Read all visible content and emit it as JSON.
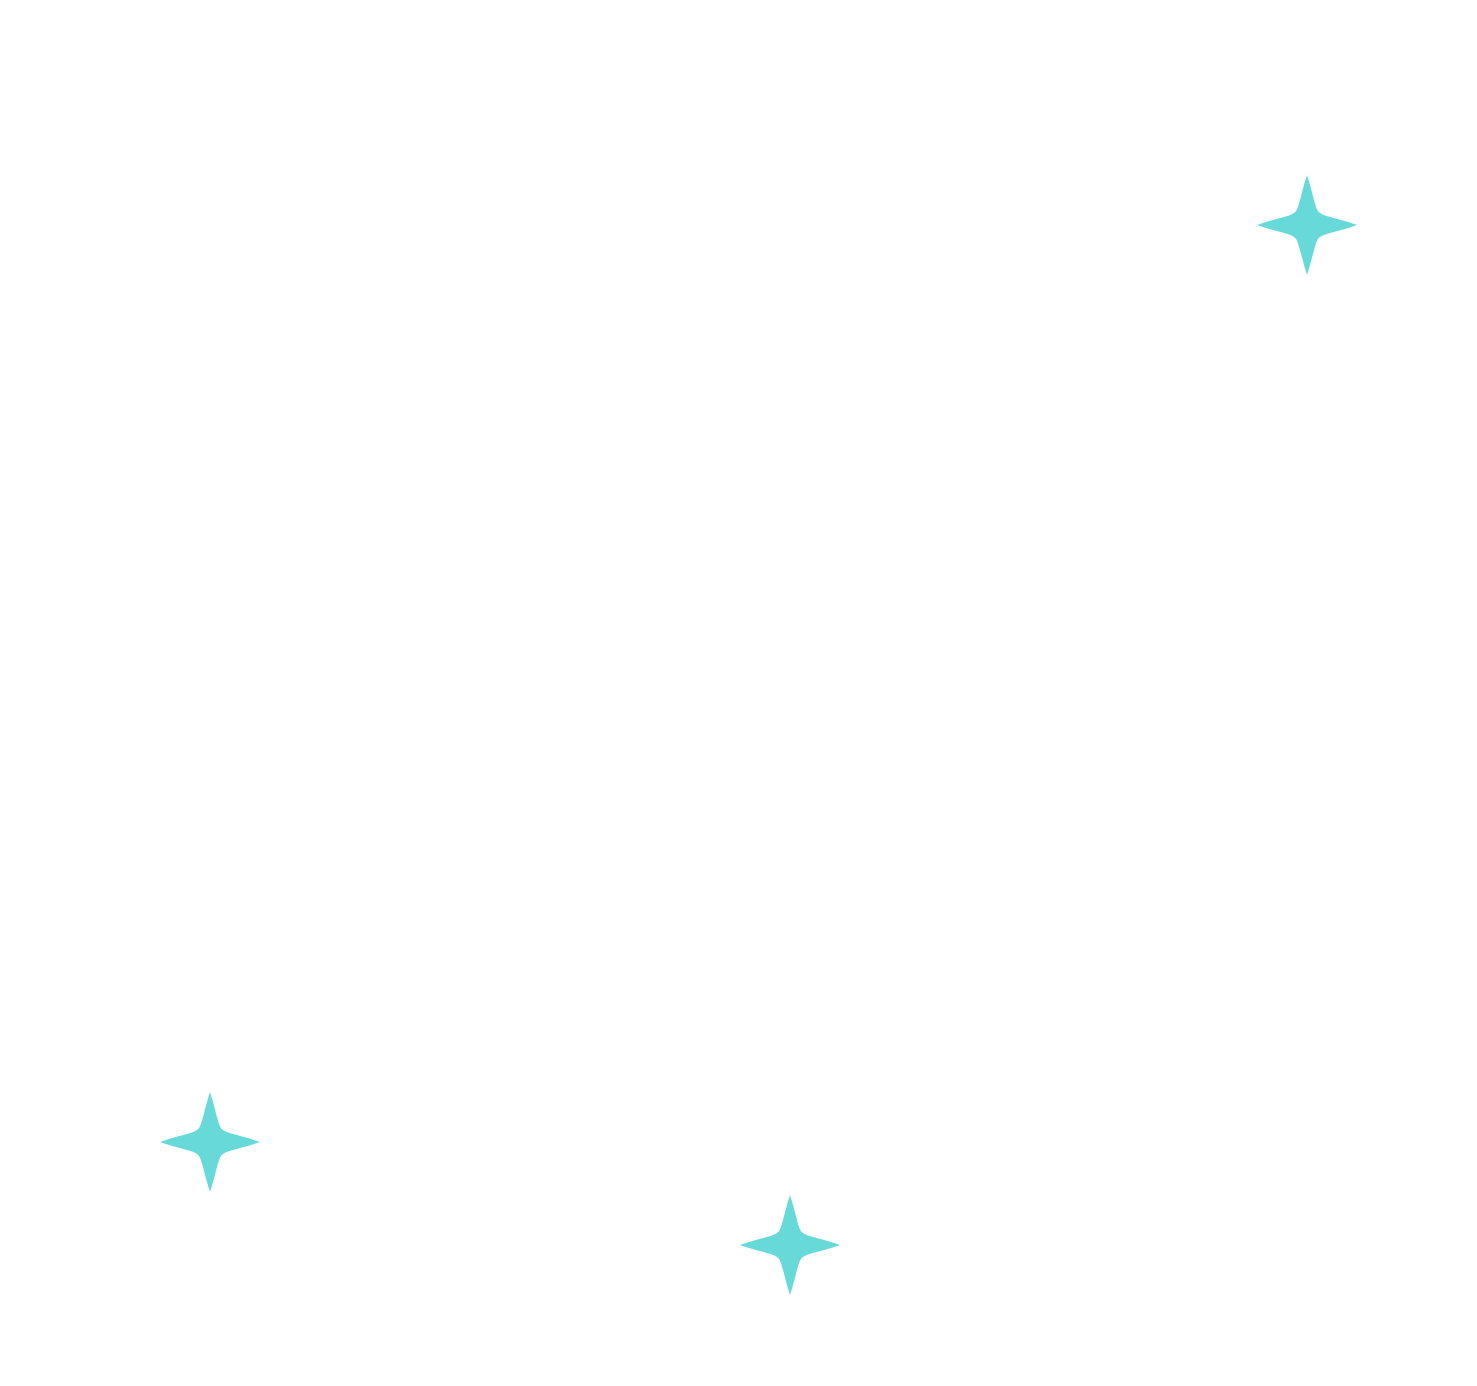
{
  "canvas": {
    "background_color": "#ffffff"
  },
  "sparkles": [
    {
      "icon": "four-point-star-icon",
      "color": "#67d9d9"
    },
    {
      "icon": "four-point-star-icon",
      "color": "#67d9d9"
    },
    {
      "icon": "four-point-star-icon",
      "color": "#67d9d9"
    }
  ]
}
